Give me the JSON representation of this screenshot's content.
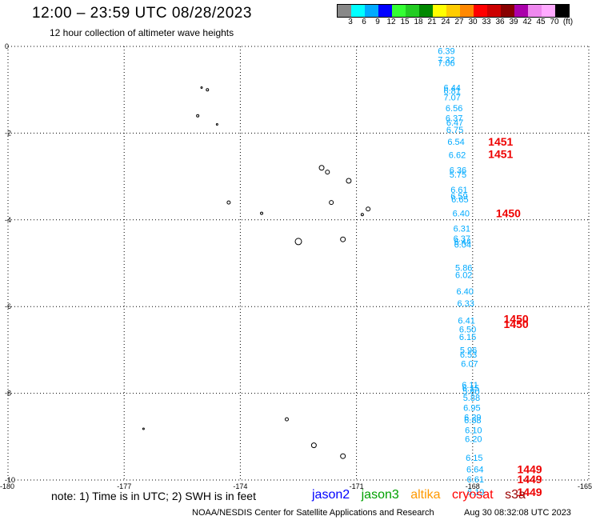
{
  "header": {
    "title": "12:00 – 23:59 UTC 08/28/2023",
    "subtitle": "12 hour collection of altimeter wave heights"
  },
  "colorbar": {
    "colors": [
      "#888888",
      "#00ffff",
      "#00aaff",
      "#0000ff",
      "#33ff33",
      "#22cc22",
      "#008800",
      "#ffff00",
      "#ffcc00",
      "#ff8800",
      "#ff0000",
      "#cc0000",
      "#880000",
      "#aa00aa",
      "#ee88ee",
      "#ffaaff",
      "#000000"
    ],
    "labels": [
      "3",
      "6",
      "9",
      "12",
      "15",
      "18",
      "21",
      "24",
      "27",
      "30",
      "33",
      "36",
      "39",
      "42",
      "45",
      "70",
      "(ft)"
    ]
  },
  "chart_data": {
    "type": "scatter",
    "xlim": [
      -180,
      -165
    ],
    "ylim": [
      -10,
      0
    ],
    "grid": "dotted",
    "x_ticks": [
      "-180",
      "-177",
      "-174",
      "-171",
      "-168",
      "-165"
    ],
    "y_ticks": [
      "0",
      "-2",
      "-4",
      "-6",
      "-8",
      "-10"
    ],
    "wave_heights": [
      {
        "lon": -168.9,
        "lat": -0.1,
        "text": "6.39"
      },
      {
        "lon": -168.9,
        "lat": -0.3,
        "text": "7.32"
      },
      {
        "lon": -168.9,
        "lat": -0.38,
        "text": "7.06"
      },
      {
        "lon": -168.75,
        "lat": -0.95,
        "text": "6.44"
      },
      {
        "lon": -168.75,
        "lat": -1.02,
        "text": "6.81"
      },
      {
        "lon": -168.75,
        "lat": -1.17,
        "text": "7.07"
      },
      {
        "lon": -168.7,
        "lat": -1.42,
        "text": "6.56"
      },
      {
        "lon": -168.7,
        "lat": -1.65,
        "text": "6.37"
      },
      {
        "lon": -168.68,
        "lat": -1.75,
        "text": "6.47"
      },
      {
        "lon": -168.68,
        "lat": -1.92,
        "text": "6.75"
      },
      {
        "lon": -168.65,
        "lat": -2.2,
        "text": "6.54"
      },
      {
        "lon": -168.62,
        "lat": -2.5,
        "text": "6.62"
      },
      {
        "lon": -168.6,
        "lat": -2.85,
        "text": "6.36"
      },
      {
        "lon": -168.6,
        "lat": -2.95,
        "text": "5.75"
      },
      {
        "lon": -168.57,
        "lat": -3.3,
        "text": "6.61"
      },
      {
        "lon": -168.57,
        "lat": -3.45,
        "text": "6.59"
      },
      {
        "lon": -168.55,
        "lat": -3.52,
        "text": "6.65"
      },
      {
        "lon": -168.52,
        "lat": -3.85,
        "text": "6.40"
      },
      {
        "lon": -168.5,
        "lat": -4.2,
        "text": "6.31"
      },
      {
        "lon": -168.5,
        "lat": -4.43,
        "text": "6.37"
      },
      {
        "lon": -168.48,
        "lat": -4.5,
        "text": "6.44"
      },
      {
        "lon": -168.48,
        "lat": -4.57,
        "text": "6.04"
      },
      {
        "lon": -168.45,
        "lat": -5.1,
        "text": "5.86"
      },
      {
        "lon": -168.45,
        "lat": -5.27,
        "text": "6.02"
      },
      {
        "lon": -168.42,
        "lat": -5.65,
        "text": "6.40"
      },
      {
        "lon": -168.4,
        "lat": -5.92,
        "text": "6.33"
      },
      {
        "lon": -168.38,
        "lat": -6.32,
        "text": "6.41"
      },
      {
        "lon": -168.35,
        "lat": -6.52,
        "text": "6.50"
      },
      {
        "lon": -168.35,
        "lat": -6.7,
        "text": "6.15"
      },
      {
        "lon": -168.33,
        "lat": -7.0,
        "text": "5.96"
      },
      {
        "lon": -168.33,
        "lat": -7.1,
        "text": "6.53"
      },
      {
        "lon": -168.3,
        "lat": -7.32,
        "text": "6.07"
      },
      {
        "lon": -168.28,
        "lat": -7.8,
        "text": "6.11"
      },
      {
        "lon": -168.27,
        "lat": -7.88,
        "text": "6.15"
      },
      {
        "lon": -168.26,
        "lat": -7.95,
        "text": "5.80"
      },
      {
        "lon": -168.25,
        "lat": -8.1,
        "text": "5.88"
      },
      {
        "lon": -168.24,
        "lat": -8.33,
        "text": "6.95"
      },
      {
        "lon": -168.22,
        "lat": -8.55,
        "text": "6.29"
      },
      {
        "lon": -168.22,
        "lat": -8.62,
        "text": "6.38"
      },
      {
        "lon": -168.2,
        "lat": -8.85,
        "text": "6.10"
      },
      {
        "lon": -168.2,
        "lat": -9.05,
        "text": "6.20"
      },
      {
        "lon": -168.18,
        "lat": -9.48,
        "text": "6.15"
      },
      {
        "lon": -168.16,
        "lat": -9.75,
        "text": "6.64"
      },
      {
        "lon": -168.15,
        "lat": -9.98,
        "text": "6.61"
      },
      {
        "lon": -168.14,
        "lat": -10.28,
        "text": "6.19"
      }
    ],
    "pass_times": [
      {
        "lon": -167.6,
        "lat": -2.2,
        "text": "1451"
      },
      {
        "lon": -167.6,
        "lat": -2.48,
        "text": "1451"
      },
      {
        "lon": -167.4,
        "lat": -3.85,
        "text": "1450"
      },
      {
        "lon": -167.2,
        "lat": -6.28,
        "text": "1450"
      },
      {
        "lon": -167.2,
        "lat": -6.4,
        "text": "1450"
      },
      {
        "lon": -166.85,
        "lat": -9.75,
        "text": "1449"
      },
      {
        "lon": -166.85,
        "lat": -9.98,
        "text": "1449"
      },
      {
        "lon": -166.85,
        "lat": -10.28,
        "text": "1449"
      }
    ],
    "islands": [
      {
        "lon": -175.0,
        "lat": -0.95,
        "r": 1
      },
      {
        "lon": -174.85,
        "lat": -1.0,
        "r": 1.5
      },
      {
        "lon": -175.1,
        "lat": -1.6,
        "r": 1.5
      },
      {
        "lon": -174.6,
        "lat": -1.8,
        "r": 1
      },
      {
        "lon": -171.9,
        "lat": -2.8,
        "r": 3
      },
      {
        "lon": -171.75,
        "lat": -2.9,
        "r": 2.5
      },
      {
        "lon": -171.2,
        "lat": -3.1,
        "r": 3
      },
      {
        "lon": -171.65,
        "lat": -3.6,
        "r": 2.5
      },
      {
        "lon": -174.3,
        "lat": -3.6,
        "r": 2
      },
      {
        "lon": -173.45,
        "lat": -3.85,
        "r": 1.5
      },
      {
        "lon": -170.7,
        "lat": -3.75,
        "r": 2.5
      },
      {
        "lon": -170.85,
        "lat": -3.88,
        "r": 1.5
      },
      {
        "lon": -172.5,
        "lat": -4.5,
        "r": 4
      },
      {
        "lon": -171.35,
        "lat": -4.45,
        "r": 3
      },
      {
        "lon": -176.5,
        "lat": -8.82,
        "r": 1
      },
      {
        "lon": -172.8,
        "lat": -8.6,
        "r": 2
      },
      {
        "lon": -172.1,
        "lat": -9.2,
        "r": 3
      },
      {
        "lon": -171.35,
        "lat": -9.45,
        "r": 3
      }
    ]
  },
  "footer": {
    "note": "note:  1) Time is in UTC;  2) SWH is in feet",
    "satellites": [
      {
        "name": "jason2",
        "color": "#0000ff"
      },
      {
        "name": "jason3",
        "color": "#00a000"
      },
      {
        "name": "altika",
        "color": "#ff9900"
      },
      {
        "name": "cryosat",
        "color": "#ff0000"
      },
      {
        "name": "s3a",
        "color": "#990000"
      }
    ],
    "credit": "NOAA/NESDIS Center for Satellite Applications and Research",
    "timestamp": "Aug 30 08:32:08 UTC 2023"
  },
  "colors": {
    "wave_height_text": "#00aaff",
    "pass_time_text": "#ee0000",
    "grid": "#000000"
  }
}
